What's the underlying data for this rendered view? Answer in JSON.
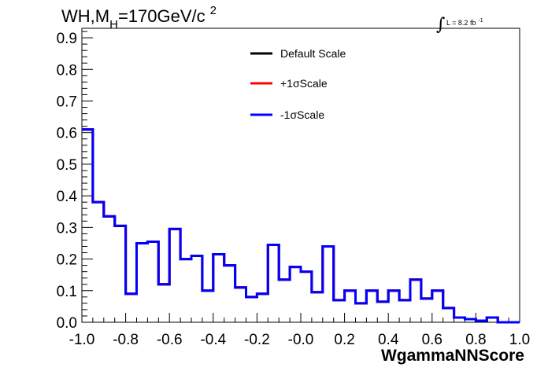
{
  "title": {
    "main": "WH,M",
    "subscript": "H",
    "rest": "=170GeV/c",
    "superscript": "2"
  },
  "lumi": {
    "integral": "∫",
    "text": "L = 8.2 fb",
    "superscript": "-1"
  },
  "chart_data": {
    "type": "line",
    "style": "step-histogram",
    "xlabel": "WgammaNNScore",
    "ylabel": "",
    "xlim": [
      -1.0,
      1.0
    ],
    "ylim": [
      0.0,
      0.93
    ],
    "x_ticks": [
      "-1.0",
      "-0.8",
      "-0.6",
      "-0.4",
      "-0.2",
      "-0.0",
      "0.2",
      "0.4",
      "0.6",
      "0.8",
      "1.0"
    ],
    "y_ticks": [
      "0.0",
      "0.1",
      "0.2",
      "0.3",
      "0.4",
      "0.5",
      "0.6",
      "0.7",
      "0.8",
      "0.9"
    ],
    "bin_edges": [
      -1.0,
      -0.95,
      -0.9,
      -0.85,
      -0.8,
      -0.75,
      -0.7,
      -0.65,
      -0.6,
      -0.55,
      -0.5,
      -0.45,
      -0.4,
      -0.35,
      -0.3,
      -0.25,
      -0.2,
      -0.15,
      -0.1,
      -0.05,
      0.0,
      0.05,
      0.1,
      0.15,
      0.2,
      0.25,
      0.3,
      0.35,
      0.4,
      0.45,
      0.5,
      0.55,
      0.6,
      0.65,
      0.7,
      0.75,
      0.8,
      0.85,
      0.9,
      0.95,
      1.0
    ],
    "grid": false,
    "legend_position": "top-center",
    "series": [
      {
        "name": "Default Scale",
        "color": "#000000",
        "values": [
          0.61,
          0.38,
          0.335,
          0.305,
          0.09,
          0.25,
          0.255,
          0.12,
          0.295,
          0.2,
          0.21,
          0.1,
          0.215,
          0.18,
          0.11,
          0.08,
          0.09,
          0.245,
          0.135,
          0.175,
          0.16,
          0.095,
          0.24,
          0.07,
          0.1,
          0.06,
          0.1,
          0.065,
          0.1,
          0.07,
          0.135,
          0.075,
          0.1,
          0.045,
          0.015,
          0.01,
          0.005,
          0.015,
          0.0,
          0.0
        ]
      },
      {
        "name": "+1σScale",
        "color": "#ff0000",
        "values": [
          0.61,
          0.38,
          0.335,
          0.305,
          0.09,
          0.25,
          0.255,
          0.12,
          0.295,
          0.2,
          0.21,
          0.1,
          0.215,
          0.18,
          0.11,
          0.08,
          0.09,
          0.245,
          0.135,
          0.175,
          0.16,
          0.095,
          0.24,
          0.07,
          0.1,
          0.06,
          0.1,
          0.065,
          0.1,
          0.07,
          0.135,
          0.075,
          0.1,
          0.045,
          0.015,
          0.01,
          0.005,
          0.015,
          0.0,
          0.0
        ]
      },
      {
        "name": "-1σScale",
        "color": "#0000ff",
        "values": [
          0.61,
          0.38,
          0.335,
          0.305,
          0.09,
          0.25,
          0.255,
          0.12,
          0.295,
          0.2,
          0.21,
          0.1,
          0.215,
          0.18,
          0.11,
          0.08,
          0.09,
          0.245,
          0.135,
          0.175,
          0.16,
          0.095,
          0.24,
          0.07,
          0.1,
          0.06,
          0.1,
          0.065,
          0.1,
          0.07,
          0.135,
          0.075,
          0.1,
          0.045,
          0.015,
          0.01,
          0.005,
          0.015,
          0.0,
          0.0
        ]
      }
    ]
  }
}
